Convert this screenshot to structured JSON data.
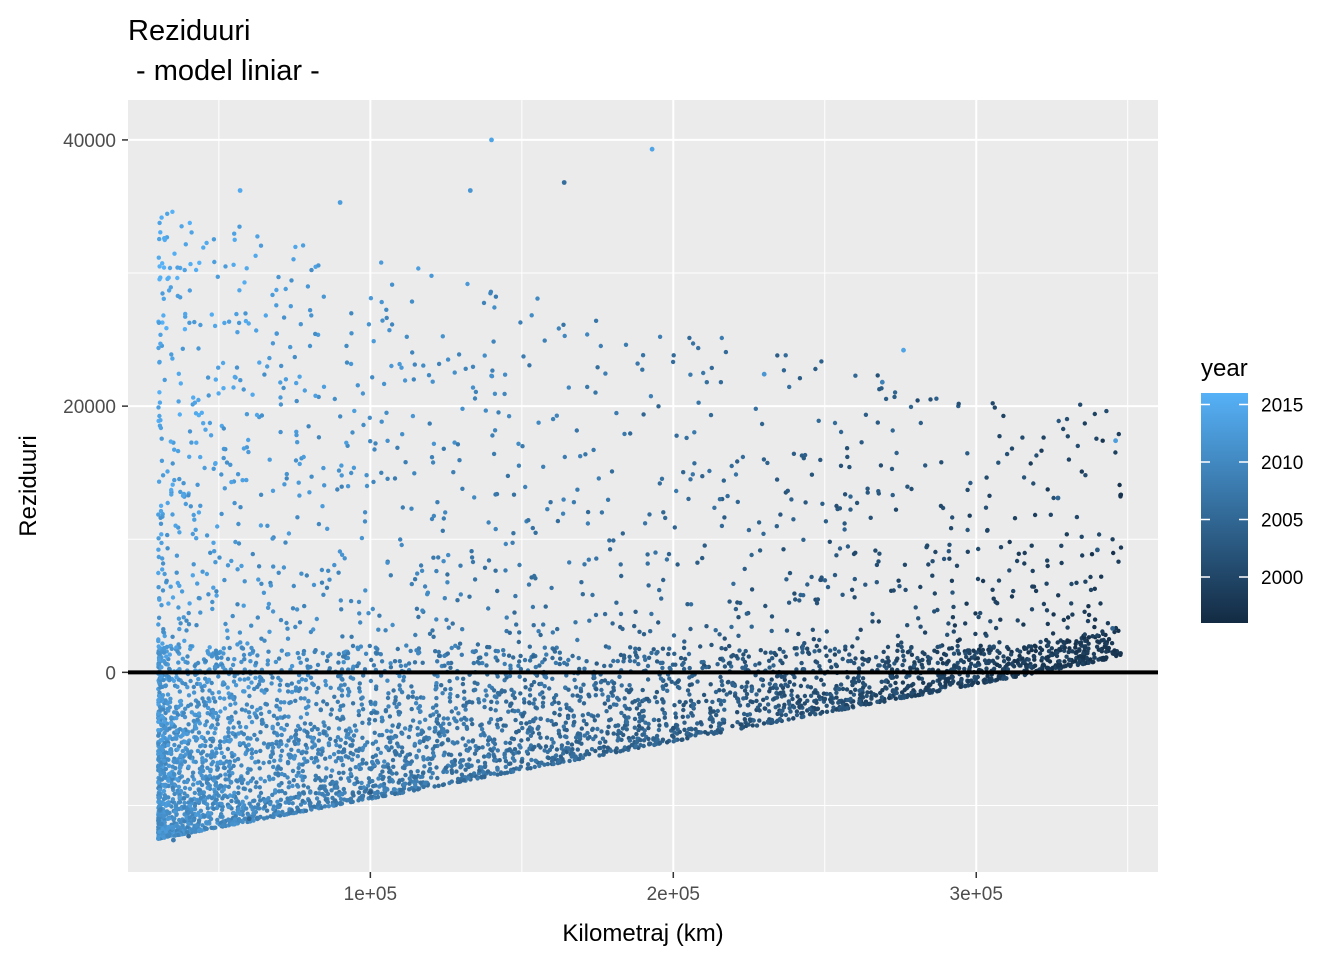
{
  "chart_data": {
    "type": "scatter",
    "title": "Reziduuri",
    "subtitle": " - model liniar -",
    "xlabel": "Kilometraj (km)",
    "ylabel": "Reziduuri",
    "xlim": [
      20000,
      360000
    ],
    "ylim": [
      -15000,
      43000
    ],
    "x_ticks": [
      100000,
      200000,
      300000
    ],
    "x_tick_labels": [
      "1e+05",
      "2e+05",
      "3e+05"
    ],
    "y_ticks": [
      0,
      20000,
      40000
    ],
    "y_tick_labels": [
      "0",
      "20000",
      "40000"
    ],
    "hline": 0,
    "grid": true,
    "background": "#ebebeb",
    "legend": {
      "title": "year",
      "placement": "right",
      "range": [
        1996,
        2016
      ],
      "ticks": [
        2000,
        2005,
        2010,
        2015
      ],
      "tick_labels": [
        "2000",
        "2005",
        "2010",
        "2015"
      ],
      "low_color": "#132b43",
      "high_color": "#56b1f7"
    },
    "points_sample": [
      {
        "x": 140000,
        "y": 40000,
        "year": 2014
      },
      {
        "x": 193000,
        "y": 39300,
        "year": 2014
      },
      {
        "x": 164000,
        "y": 36800,
        "year": 2006
      },
      {
        "x": 133000,
        "y": 36200,
        "year": 2012
      },
      {
        "x": 57000,
        "y": 36200,
        "year": 2015
      },
      {
        "x": 90000,
        "y": 35300,
        "year": 2013
      },
      {
        "x": 32000,
        "y": 32600,
        "year": 2015
      },
      {
        "x": 276000,
        "y": 24200,
        "year": 2014
      },
      {
        "x": 230000,
        "y": 22400,
        "year": 2012
      },
      {
        "x": 269000,
        "y": 21800,
        "year": 2009
      },
      {
        "x": 346000,
        "y": 17400,
        "year": 2013
      },
      {
        "x": 327000,
        "y": 13100,
        "year": 2005
      },
      {
        "x": 340000,
        "y": 9200,
        "year": 2003
      },
      {
        "x": 345000,
        "y": 3300,
        "year": 2004
      },
      {
        "x": 300000,
        "y": 500,
        "year": 2001
      },
      {
        "x": 35000,
        "y": -12600,
        "year": 2008
      },
      {
        "x": 40000,
        "y": -12300,
        "year": 2006
      },
      {
        "x": 60000,
        "y": -11000,
        "year": 2005
      },
      {
        "x": 100000,
        "y": -9000,
        "year": 2003
      },
      {
        "x": 150000,
        "y": -6700,
        "year": 2004
      },
      {
        "x": 200000,
        "y": -4200,
        "year": 2002
      },
      {
        "x": 250000,
        "y": -2000,
        "year": 2001
      },
      {
        "x": 280000,
        "y": 0,
        "year": 2000
      }
    ]
  }
}
